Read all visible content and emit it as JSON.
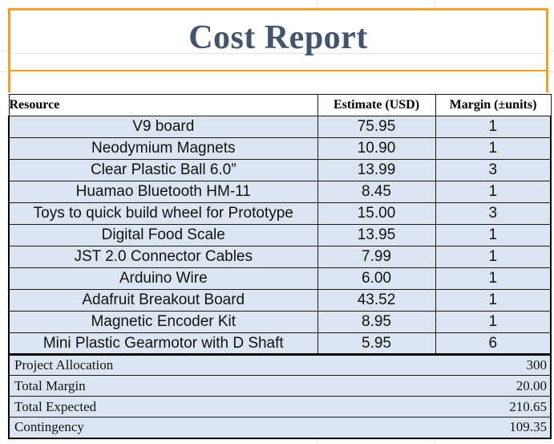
{
  "title": "Cost Report",
  "columns": [
    "Resource",
    "Estimate  (USD)",
    "Margin (±units)"
  ],
  "items": [
    {
      "resource": "V9 board",
      "estimate": "75.95",
      "margin": "1"
    },
    {
      "resource": "Neodymium Magnets",
      "estimate": "10.90",
      "margin": "1"
    },
    {
      "resource": "Clear Plastic Ball 6.0”",
      "estimate": "13.99",
      "margin": "3"
    },
    {
      "resource": "Huamao Bluetooth HM-11",
      "estimate": "8.45",
      "margin": "1"
    },
    {
      "resource": "Toys to quick build wheel for Prototype",
      "estimate": "15.00",
      "margin": "3"
    },
    {
      "resource": "Digital Food Scale",
      "estimate": "13.95",
      "margin": "1"
    },
    {
      "resource": "JST 2.0 Connector Cables",
      "estimate": "7.99",
      "margin": "1"
    },
    {
      "resource": "Arduino Wire",
      "estimate": "6.00",
      "margin": "1"
    },
    {
      "resource": "Adafruit Breakout Board",
      "estimate": "43.52",
      "margin": "1"
    },
    {
      "resource": "Magnetic Encoder Kit",
      "estimate": "8.95",
      "margin": "1"
    },
    {
      "resource": "Mini Plastic Gearmotor with D Shaft",
      "estimate": "5.95",
      "margin": "6"
    }
  ],
  "summary": [
    {
      "label": "Project Allocation",
      "value": "300"
    },
    {
      "label": "Total Margin",
      "value": "20.00"
    },
    {
      "label": "Total Expected",
      "value": "210.65"
    },
    {
      "label": "Contingency",
      "value": "109.35"
    }
  ],
  "colors": {
    "title": "#44546a",
    "accent_border": "#f0a030",
    "row_fill": "#dce6f2"
  }
}
